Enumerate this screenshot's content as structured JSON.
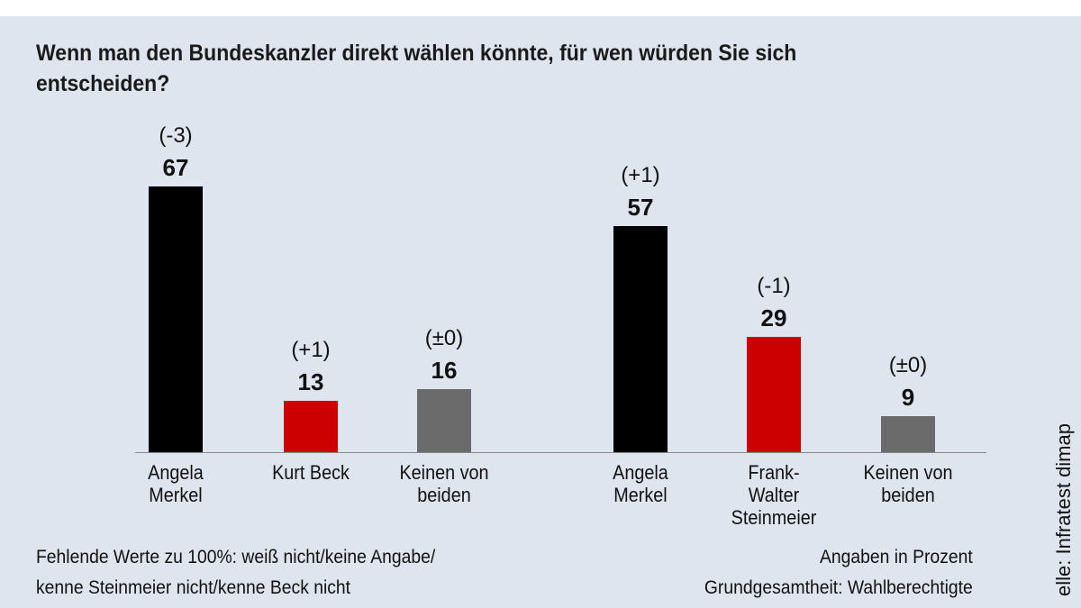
{
  "chart_data": {
    "type": "bar",
    "title": "Wenn man den Bundeskanzler direkt wählen könnte, für wen würden Sie sich entscheiden?",
    "categories": [
      "Angela\nMerkel",
      "Kurt Beck",
      "Keinen von\nbeiden",
      "Angela\nMerkel",
      "Frank-\nWalter\nSteinmeier",
      "Keinen von\nbeiden"
    ],
    "values": [
      67,
      13,
      16,
      57,
      29,
      9
    ],
    "changes": [
      "(-3)",
      "(+1)",
      "(±0)",
      "(+1)",
      "(-1)",
      "(±0)"
    ],
    "colors": [
      "#000000",
      "#cc0000",
      "#6b6b6b",
      "#000000",
      "#cc0000",
      "#6b6b6b"
    ],
    "note_left": [
      "Fehlende Werte zu 100%: weiß nicht/keine Angabe/",
      "kenne Steinmeier nicht/kenne Beck nicht"
    ],
    "note_right": [
      "Angaben in Prozent",
      "Grundgesamtheit: Wahlberechtigte"
    ],
    "source": "elle: Infratest dimap"
  }
}
